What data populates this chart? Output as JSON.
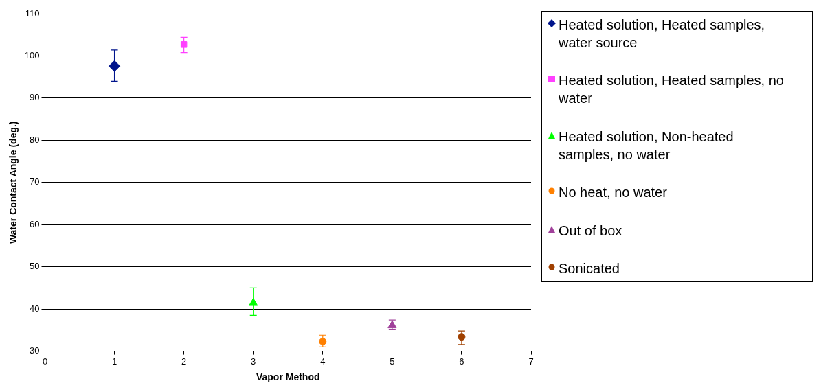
{
  "chart_data": {
    "type": "scatter",
    "xlabel": "Vapor Method",
    "ylabel": "Water Contact Angle (deg.)",
    "xlim": [
      0,
      7
    ],
    "xticks": [
      0,
      1,
      2,
      3,
      4,
      5,
      6,
      7
    ],
    "ylim": [
      30,
      110
    ],
    "yticks": [
      30,
      40,
      50,
      60,
      70,
      80,
      90,
      100,
      110
    ],
    "grid": "y",
    "legend": "right",
    "series": [
      {
        "name": "Heated solution, Heated samples, water source",
        "color": "#00148c",
        "marker": "diamond",
        "x": [
          1
        ],
        "values": [
          97.6
        ],
        "errors": [
          [
            94.0,
            101.4
          ]
        ]
      },
      {
        "name": "Heated solution, Heated samples, no water",
        "color": "#ff40ff",
        "marker": "square",
        "x": [
          2
        ],
        "values": [
          102.7
        ],
        "errors": [
          [
            100.8,
            104.4
          ]
        ]
      },
      {
        "name": "Heated solution, Non-heated samples, no water",
        "color": "#00ff00",
        "marker": "triangle",
        "x": [
          3
        ],
        "values": [
          41.4
        ],
        "errors": [
          [
            38.5,
            45.0
          ]
        ]
      },
      {
        "name": "No heat, no water",
        "color": "#ff8000",
        "marker": "circle",
        "x": [
          4
        ],
        "values": [
          32.3
        ],
        "errors": [
          [
            31.0,
            33.8
          ]
        ]
      },
      {
        "name": "Out of box",
        "color": "#a0409a",
        "marker": "triangle",
        "x": [
          5
        ],
        "values": [
          36.1
        ],
        "errors": [
          [
            35.2,
            37.4
          ]
        ]
      },
      {
        "name": "Sonicated",
        "color": "#a04000",
        "marker": "circle",
        "x": [
          6
        ],
        "values": [
          33.4
        ],
        "errors": [
          [
            31.6,
            34.8
          ]
        ]
      }
    ]
  }
}
